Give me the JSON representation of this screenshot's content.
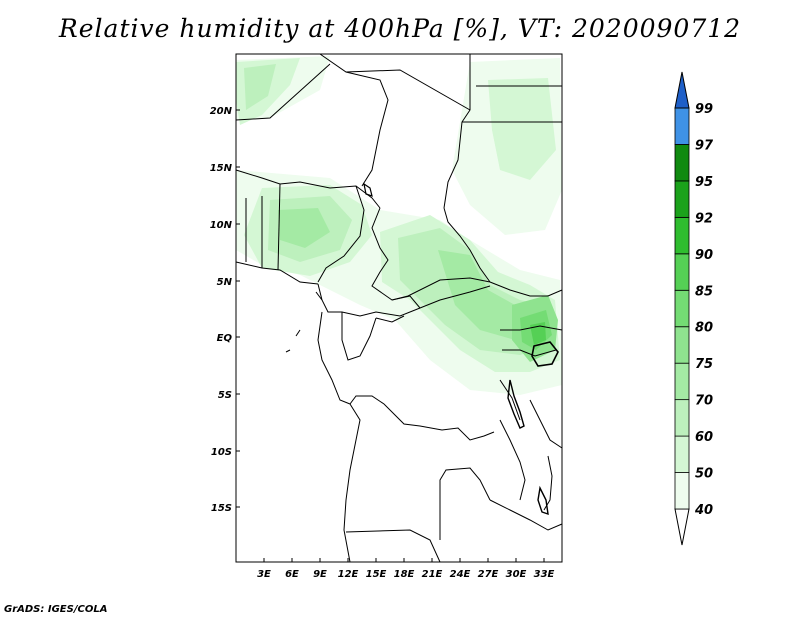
{
  "map": {
    "title": "Relative humidity at 400hPa [%], VT: 2020090712",
    "footer": "GrADS: IGES/COLA",
    "variable": "Relative humidity",
    "level": "400hPa",
    "unit": "%",
    "valid_time": "2020090712",
    "lat_ticks": [
      "20N",
      "15N",
      "10N",
      "5N",
      "EQ",
      "5S",
      "10S",
      "15S"
    ],
    "lon_ticks": [
      "3E",
      "6E",
      "9E",
      "12E",
      "15E",
      "18E",
      "21E",
      "24E",
      "27E",
      "30E",
      "33E"
    ]
  },
  "colorbar": {
    "levels": [
      "40",
      "50",
      "60",
      "70",
      "75",
      "80",
      "85",
      "90",
      "92",
      "95",
      "97",
      "99"
    ],
    "colors": [
      "#eefcee",
      "#d4f7d4",
      "#bdf0bd",
      "#a4eaa4",
      "#8fe38f",
      "#74dc74",
      "#55d055",
      "#2fbd2f",
      "#1ba21b",
      "#108a10",
      "#3f92e6",
      "#2673dc",
      "#1e5fc8"
    ],
    "below_color": "#ffffff"
  }
}
